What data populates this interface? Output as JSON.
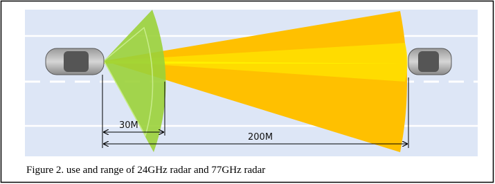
{
  "figure": {
    "labels": [
      "30M",
      "200M"
    ],
    "caption": "Figure 2. use and range of 24GHz radar and 77GHz radar"
  }
}
